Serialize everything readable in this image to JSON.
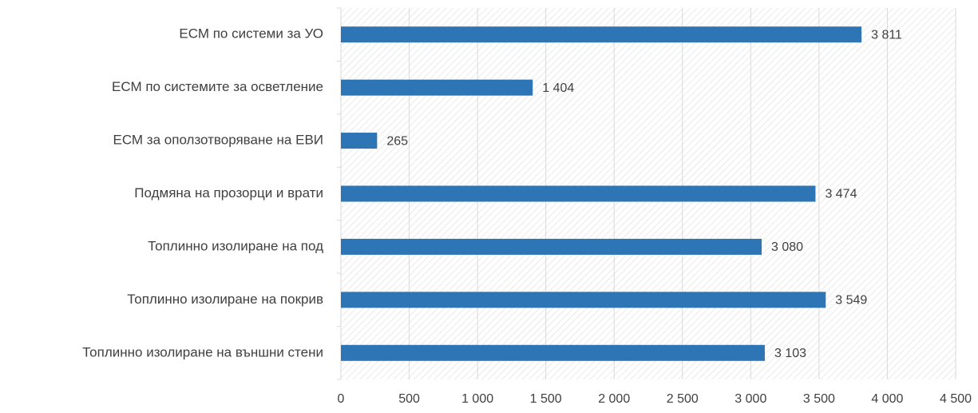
{
  "chart_data": {
    "type": "bar",
    "orientation": "horizontal",
    "categories": [
      "ЕСМ по системи за УО",
      "ЕСМ по системите за осветление",
      "ЕСМ за оползотворяване на ЕВИ",
      "Подмяна на прозорци и врати",
      "Топлинно изолиране на под",
      "Топлинно изолиране на покрив",
      "Топлинно изолиране на външни стени"
    ],
    "values": [
      3811,
      1404,
      265,
      3474,
      3080,
      3549,
      3103
    ],
    "value_labels": [
      "3 811",
      "1 404",
      "265",
      "3 474",
      "3 080",
      "3 549",
      "3 103"
    ],
    "color": "#2e75b6",
    "xlim": [
      0,
      4500
    ],
    "xticks": [
      0,
      500,
      {
        "value": 1000,
        "label": "1 000"
      },
      {
        "value": 1500,
        "label": "1 500"
      },
      {
        "value": 2000,
        "label": "2 000"
      },
      {
        "value": 2500,
        "label": "2 500"
      },
      {
        "value": 3000,
        "label": "3 000"
      },
      {
        "value": 3500,
        "label": "3 500"
      },
      {
        "value": 4000,
        "label": "4 000"
      },
      {
        "value": 4500,
        "label": "4 500"
      }
    ],
    "grid": true
  }
}
